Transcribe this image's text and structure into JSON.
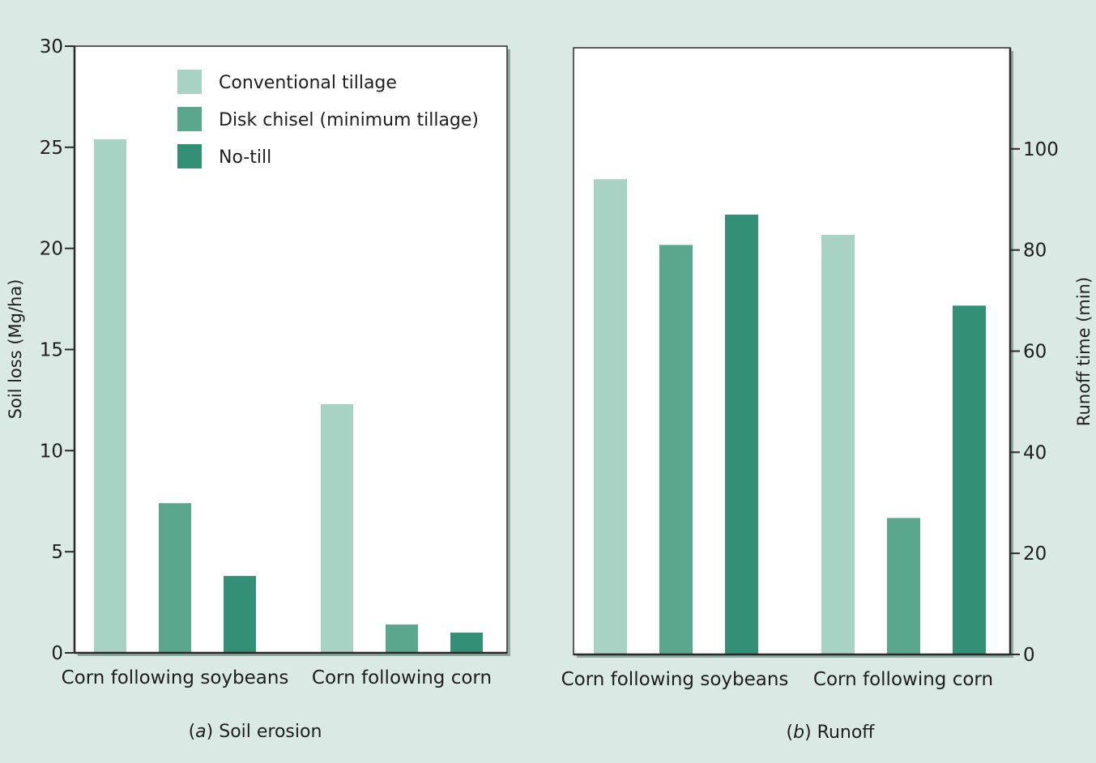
{
  "chart_data": [
    {
      "type": "bar",
      "caption": {
        "prefix": "a",
        "title": "Soil erosion"
      },
      "categories": [
        "Corn following soybeans",
        "Corn following corn"
      ],
      "series": [
        {
          "name": "Conventional tillage",
          "values": [
            25.4,
            12.3
          ]
        },
        {
          "name": "Disk chisel (minimum tillage)",
          "values": [
            7.4,
            1.4
          ]
        },
        {
          "name": "No-till",
          "values": [
            3.8,
            1.0
          ]
        }
      ],
      "ylabel": "Soil loss (Mg/ha)",
      "ylim": [
        0,
        30
      ],
      "yticks": [
        0,
        5,
        10,
        15,
        20,
        25,
        30
      ],
      "yaxis_side": "left",
      "legend": "top-right",
      "grid": false
    },
    {
      "type": "bar",
      "caption": {
        "prefix": "b",
        "title": "Runoff"
      },
      "categories": [
        "Corn following soybeans",
        "Corn following corn"
      ],
      "series": [
        {
          "name": "Conventional tillage",
          "values": [
            94,
            83
          ]
        },
        {
          "name": "Disk chisel (minimum tillage)",
          "values": [
            81,
            27
          ]
        },
        {
          "name": "No-till",
          "values": [
            87,
            69
          ]
        }
      ],
      "ylabel": "Runoff time (min)",
      "ylim": [
        0,
        120
      ],
      "yticks": [
        0,
        20,
        40,
        60,
        80,
        100
      ],
      "yaxis_side": "right",
      "grid": false
    }
  ],
  "colors": {
    "background": "#dbe9e4",
    "plot_bg": "#ffffff",
    "axis": "#2a2a2a",
    "shadow": "#8fa8a0",
    "series": [
      "#a8d3c4",
      "#5aa78e",
      "#338f76"
    ]
  }
}
